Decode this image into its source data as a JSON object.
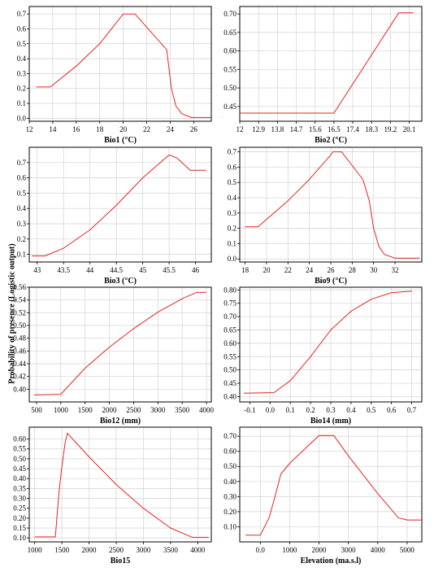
{
  "figure": {
    "ylabel": "Probability of presence (Logistic output)"
  },
  "chart_data": [
    {
      "type": "line",
      "xlabel": "Bio1 (°C)",
      "xlim": [
        12,
        27.5
      ],
      "ylim": [
        -0.02,
        0.75
      ],
      "xticks": [
        "12",
        "14",
        "16",
        "18",
        "20",
        "22",
        "24",
        "26"
      ],
      "yticks": [
        "0.0",
        "0.1",
        "0.2",
        "0.3",
        "0.4",
        "0.5",
        "0.6",
        "0.7"
      ],
      "grid": true,
      "series": [
        {
          "color": "#e8231f",
          "points": [
            [
              12.6,
              0.21
            ],
            [
              13.8,
              0.21
            ],
            [
              16,
              0.35
            ],
            [
              18,
              0.5
            ],
            [
              20,
              0.7
            ],
            [
              21,
              0.7
            ],
            [
              23.7,
              0.46
            ],
            [
              24.1,
              0.2
            ],
            [
              24.5,
              0.08
            ],
            [
              25,
              0.03
            ],
            [
              25.8,
              0.005
            ],
            [
              27.5,
              0.005
            ]
          ]
        }
      ]
    },
    {
      "type": "line",
      "xlabel": "Bio2 (°C)",
      "xlim": [
        12,
        20.7
      ],
      "ylim": [
        0.41,
        0.72
      ],
      "xticks": [
        "12",
        "12.9",
        "13.8",
        "14.7",
        "15.6",
        "16.5",
        "17.4",
        "18.3",
        "19.2",
        "20.1"
      ],
      "xtick_values": [
        12,
        12.9,
        13.8,
        14.7,
        15.6,
        16.5,
        17.4,
        18.3,
        19.2,
        20.1
      ],
      "yticks": [
        "0.45",
        "0.50",
        "0.55",
        "0.60",
        "0.65",
        "0.70"
      ],
      "grid": true,
      "series": [
        {
          "color": "#e8231f",
          "points": [
            [
              12,
              0.432
            ],
            [
              16.5,
              0.432
            ],
            [
              19.6,
              0.703
            ],
            [
              20.3,
              0.703
            ]
          ]
        }
      ]
    },
    {
      "type": "line",
      "xlabel": "Bio3 (°C)",
      "xlim": [
        42.85,
        46.3
      ],
      "ylim": [
        0.05,
        0.8
      ],
      "xticks": [
        "43",
        "43.5",
        "44",
        "44.5",
        "45",
        "45.5",
        "46"
      ],
      "yticks": [
        "0.1",
        "0.2",
        "0.3",
        "0.4",
        "0.5",
        "0.6",
        "0.7"
      ],
      "grid": true,
      "series": [
        {
          "color": "#e8231f",
          "points": [
            [
              42.9,
              0.09
            ],
            [
              43.15,
              0.09
            ],
            [
              43.5,
              0.14
            ],
            [
              44,
              0.26
            ],
            [
              44.5,
              0.42
            ],
            [
              45,
              0.6
            ],
            [
              45.5,
              0.75
            ],
            [
              45.65,
              0.73
            ],
            [
              45.9,
              0.65
            ],
            [
              46.2,
              0.65
            ]
          ]
        }
      ]
    },
    {
      "type": "line",
      "xlabel": "Bio9 (°C)",
      "xlim": [
        17.5,
        34.5
      ],
      "ylim": [
        -0.02,
        0.73
      ],
      "xticks": [
        "18",
        "20",
        "22",
        "24",
        "26",
        "28",
        "30",
        "32"
      ],
      "yticks": [
        "0.0",
        "0.1",
        "0.2",
        "0.3",
        "0.4",
        "0.5",
        "0.6",
        "0.7"
      ],
      "grid": true,
      "series": [
        {
          "color": "#e8231f",
          "points": [
            [
              18,
              0.21
            ],
            [
              19.2,
              0.21
            ],
            [
              22,
              0.38
            ],
            [
              24,
              0.52
            ],
            [
              26,
              0.68
            ],
            [
              26.2,
              0.7
            ],
            [
              27,
              0.7
            ],
            [
              29,
              0.52
            ],
            [
              29.6,
              0.38
            ],
            [
              30,
              0.2
            ],
            [
              30.5,
              0.08
            ],
            [
              31,
              0.03
            ],
            [
              32,
              0.005
            ],
            [
              34.3,
              0.005
            ]
          ]
        }
      ]
    },
    {
      "type": "line",
      "xlabel": "Bio12 (mm)",
      "xlim": [
        350,
        4100
      ],
      "ylim": [
        0.38,
        0.56
      ],
      "xticks": [
        "500",
        "1000",
        "1500",
        "2000",
        "2500",
        "3000",
        "3500",
        "4000"
      ],
      "yticks": [
        "0.40",
        "0.42",
        "0.44",
        "0.46",
        "0.48",
        "0.50",
        "0.52",
        "0.54",
        "0.56"
      ],
      "grid": true,
      "series": [
        {
          "color": "#e8231f",
          "points": [
            [
              450,
              0.391
            ],
            [
              1000,
              0.392
            ],
            [
              1500,
              0.433
            ],
            [
              2000,
              0.466
            ],
            [
              2500,
              0.495
            ],
            [
              3000,
              0.521
            ],
            [
              3500,
              0.542
            ],
            [
              3800,
              0.552
            ],
            [
              4000,
              0.552
            ]
          ]
        }
      ]
    },
    {
      "type": "line",
      "xlabel": "Bio14 (mm)",
      "xlim": [
        -0.15,
        0.75
      ],
      "ylim": [
        0.38,
        0.81
      ],
      "xticks": [
        "-0.1",
        "0.0",
        "0.1",
        "0.2",
        "0.3",
        "0.4",
        "0.5",
        "0.6",
        "0.7"
      ],
      "yticks": [
        "0.40",
        "0.45",
        "0.50",
        "0.55",
        "0.60",
        "0.65",
        "0.70",
        "0.75",
        "0.80"
      ],
      "grid": true,
      "series": [
        {
          "color": "#e8231f",
          "points": [
            [
              -0.13,
              0.413
            ],
            [
              0.02,
              0.415
            ],
            [
              0.1,
              0.46
            ],
            [
              0.2,
              0.55
            ],
            [
              0.3,
              0.65
            ],
            [
              0.4,
              0.72
            ],
            [
              0.5,
              0.765
            ],
            [
              0.6,
              0.79
            ],
            [
              0.7,
              0.795
            ]
          ]
        }
      ]
    },
    {
      "type": "line",
      "xlabel": "Bio15",
      "xlim": [
        900,
        4250
      ],
      "ylim": [
        0.08,
        0.66
      ],
      "xticks": [
        "1000",
        "1500",
        "2000",
        "2500",
        "3000",
        "3500",
        "4000"
      ],
      "yticks": [
        "0.10",
        "0.15",
        "0.20",
        "0.25",
        "0.30",
        "0.35",
        "0.40",
        "0.45",
        "0.50",
        "0.55",
        "0.60"
      ],
      "grid": true,
      "series": [
        {
          "color": "#e8231f",
          "points": [
            [
              1000,
              0.105
            ],
            [
              1380,
              0.105
            ],
            [
              1450,
              0.34
            ],
            [
              1500,
              0.46
            ],
            [
              1560,
              0.58
            ],
            [
              1600,
              0.63
            ],
            [
              1700,
              0.6
            ],
            [
              2000,
              0.51
            ],
            [
              2500,
              0.37
            ],
            [
              3000,
              0.25
            ],
            [
              3500,
              0.15
            ],
            [
              3900,
              0.103
            ],
            [
              4200,
              0.103
            ]
          ]
        }
      ]
    },
    {
      "type": "line",
      "xlabel": "Elevation (ma.s.l)",
      "xlim": [
        -700,
        5500
      ],
      "ylim": [
        0.0,
        0.76
      ],
      "xticks": [
        "0.0",
        "1000",
        "2000",
        "3000",
        "4000",
        "5000"
      ],
      "xtick_values": [
        0,
        1000,
        2000,
        3000,
        4000,
        5000
      ],
      "yticks": [
        "0.10",
        "0.20",
        "0.30",
        "0.40",
        "0.50",
        "0.60",
        "0.70"
      ],
      "grid": true,
      "series": [
        {
          "color": "#e8231f",
          "points": [
            [
              -500,
              0.045
            ],
            [
              0,
              0.045
            ],
            [
              300,
              0.16
            ],
            [
              500,
              0.3
            ],
            [
              700,
              0.45
            ],
            [
              1000,
              0.52
            ],
            [
              2000,
              0.705
            ],
            [
              2500,
              0.705
            ],
            [
              3000,
              0.57
            ],
            [
              4000,
              0.32
            ],
            [
              4700,
              0.16
            ],
            [
              5000,
              0.145
            ],
            [
              5500,
              0.145
            ]
          ]
        }
      ]
    }
  ]
}
